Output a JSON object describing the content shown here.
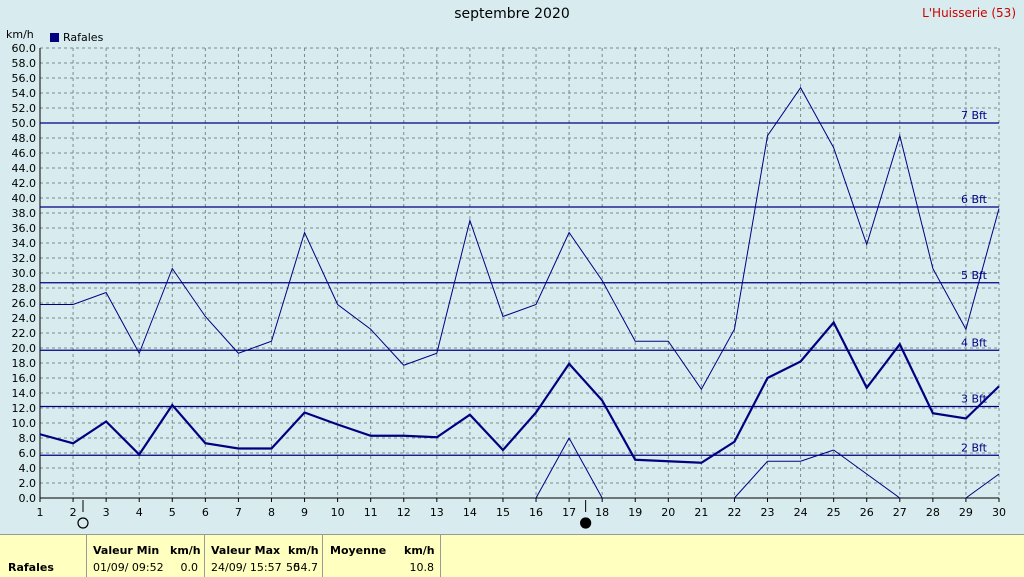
{
  "header": {
    "title": "septembre 2020",
    "station": "L'Huisserie (53)",
    "unit": "km/h",
    "legend": "Rafales"
  },
  "chart_data": {
    "type": "line",
    "x": [
      1,
      2,
      3,
      4,
      5,
      6,
      7,
      8,
      9,
      10,
      11,
      12,
      13,
      14,
      15,
      16,
      17,
      18,
      19,
      20,
      21,
      22,
      23,
      24,
      25,
      26,
      27,
      28,
      29,
      30
    ],
    "xlim": [
      1,
      30
    ],
    "ylim": [
      0,
      60
    ],
    "ytick_step": 2,
    "series": [
      {
        "name": "Rafales",
        "role": "max",
        "values": [
          25.8,
          25.8,
          27.4,
          19.3,
          30.6,
          24.2,
          19.3,
          20.9,
          35.4,
          25.8,
          22.5,
          17.7,
          19.3,
          37.0,
          24.2,
          25.8,
          35.4,
          29.0,
          20.9,
          20.9,
          14.5,
          22.5,
          48.3,
          54.7,
          46.7,
          33.8,
          48.3,
          30.6,
          22.5,
          38.6
        ]
      },
      {
        "name": "Rafales",
        "role": "mean",
        "values": [
          8.5,
          7.3,
          10.2,
          5.8,
          12.4,
          7.3,
          6.6,
          6.6,
          11.4,
          9.8,
          8.3,
          8.3,
          8.1,
          11.1,
          6.4,
          11.4,
          17.9,
          13.0,
          5.1,
          4.9,
          4.7,
          7.5,
          16.0,
          18.2,
          23.4,
          14.7,
          20.5,
          11.3,
          10.6,
          14.9
        ]
      },
      {
        "name": "Rafales",
        "role": "min",
        "values": [
          0,
          0,
          0,
          0,
          0,
          0,
          0,
          0,
          0,
          0,
          0,
          0,
          0,
          0,
          0,
          0,
          8.0,
          0,
          0,
          0,
          0,
          0,
          4.9,
          4.9,
          6.4,
          3.2,
          0,
          0,
          0,
          3.2
        ]
      }
    ],
    "beaufort_lines": [
      {
        "label": "2 Bft",
        "value": 5.7
      },
      {
        "label": "3 Bft",
        "value": 12.2
      },
      {
        "label": "4 Bft",
        "value": 19.7
      },
      {
        "label": "5 Bft",
        "value": 28.7
      },
      {
        "label": "6 Bft",
        "value": 38.8
      },
      {
        "label": "7 Bft",
        "value": 50.0
      }
    ],
    "moon_phases": [
      {
        "day": 2.3,
        "phase": "full"
      },
      {
        "day": 17.5,
        "phase": "new"
      }
    ],
    "grid": true,
    "legend_position": "top-left"
  },
  "footer": {
    "row_label": "Rafales",
    "min_label": "Valeur Min",
    "min_unit": "km/h",
    "min_time": "01/09/  09:52",
    "min_value": "0.0",
    "max_label": "Valeur Max",
    "max_unit": "km/h",
    "max_time": "24/09/  15:57",
    "max_value": "54.7",
    "max_extra": "50",
    "mean_label": "Moyenne",
    "mean_unit": "km/h",
    "mean_value": "10.8"
  },
  "colors": {
    "background": "#d8ecf0",
    "line": "#000080",
    "grid": "#7a8a8a",
    "station": "#cc0000",
    "footer": "#ffffc0"
  }
}
